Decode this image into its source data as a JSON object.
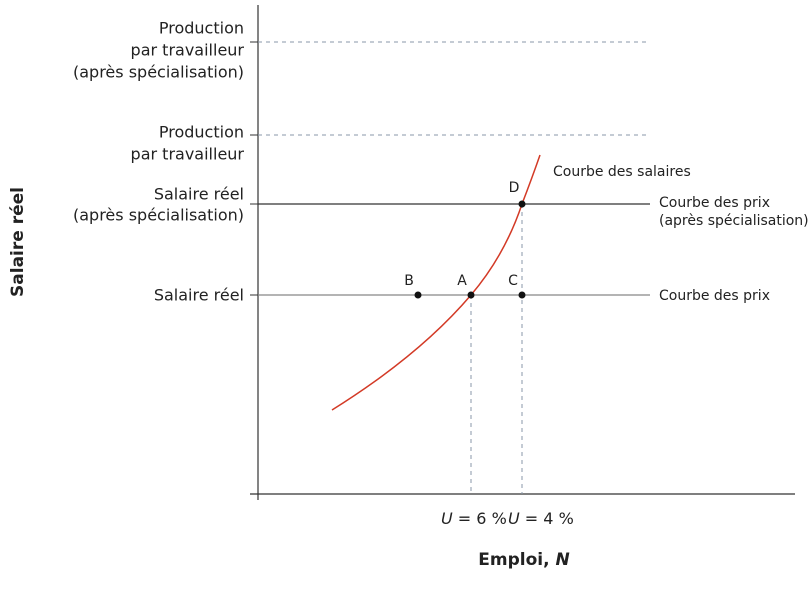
{
  "y_axis": {
    "title": "Salaire réel"
  },
  "x_axis": {
    "title": "Emploi, ",
    "variable": "N"
  },
  "y_labels": {
    "production_after": [
      "Production",
      "par travailleur",
      "(après spécialisation)"
    ],
    "production": [
      "Production",
      "par travailleur"
    ],
    "wage_after": [
      "Salaire réel",
      "(après spécialisation)"
    ],
    "wage": [
      "Salaire réel"
    ]
  },
  "x_labels": [
    {
      "variable": "U",
      "text": " = 6 %"
    },
    {
      "variable": "U",
      "text": " = 4 %"
    }
  ],
  "curves": {
    "wage_curve": "Courbe des salaires",
    "price_curve_after": [
      "Courbe des prix",
      "(après spécialisation)"
    ],
    "price_curve": "Courbe des prix"
  },
  "points": [
    "B",
    "A",
    "C",
    "D"
  ]
}
